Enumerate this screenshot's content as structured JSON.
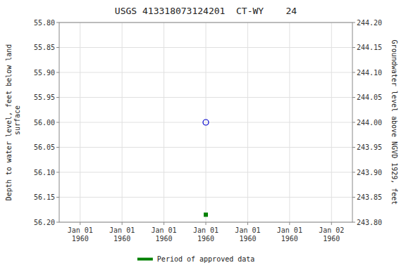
{
  "chart_data": {
    "type": "scatter",
    "title": "USGS 413318073124201  CT-WY    24",
    "y_label": "Depth to water level, feet below land\n surface",
    "y2_label": "Groundwater level above NGVD 1929, feet",
    "categories": [
      "Jan 01\n1960",
      "Jan 01\n1960",
      "Jan 01\n1960",
      "Jan 01\n1960",
      "Jan 01\n1960",
      "Jan 01\n1960",
      "Jan 02\n1960"
    ],
    "series": [
      {
        "color": "#0000cc",
        "marker": "circle",
        "values": [
          null,
          null,
          null,
          56.0,
          null,
          null,
          null
        ]
      },
      {
        "name": "Period of approved data",
        "color": "#008000",
        "marker": "square",
        "values": [
          null,
          null,
          null,
          56.185,
          null,
          null,
          null
        ]
      }
    ],
    "ylim": [
      56.2,
      55.8
    ],
    "yticks": [
      {
        "value": 55.8,
        "label": "55.80"
      },
      55.85,
      {
        "value": 55.9,
        "label": "55.90"
      },
      55.95,
      {
        "value": 56.0,
        "label": "56.00"
      },
      56.05,
      {
        "value": 56.1,
        "label": "56.10"
      },
      56.15,
      {
        "value": 56.2,
        "label": "56.20"
      }
    ],
    "y2lim": [
      243.8,
      244.2
    ],
    "y2ticks": [
      {
        "value": 244.2,
        "label": "244.20"
      },
      244.15,
      {
        "value": 244.1,
        "label": "244.10"
      },
      244.05,
      {
        "value": 244.0,
        "label": "244.00"
      },
      243.95,
      {
        "value": 243.9,
        "label": "243.90"
      },
      243.85,
      {
        "value": 243.8,
        "label": "243.80"
      }
    ],
    "grid": true,
    "legend": "bottom"
  }
}
